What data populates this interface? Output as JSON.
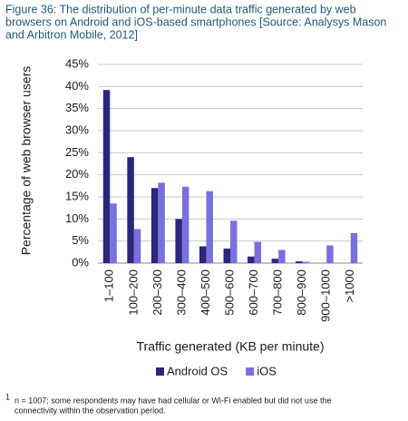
{
  "chart_data": {
    "type": "bar",
    "title": [
      "Figure 36: The distribution of per-minute data traffic generated by web",
      "browsers on Android and iOS-based smartphones [Source: Analysys Mason",
      "and Arbitron Mobile, 2012]"
    ],
    "y_label": "Percentage of web browser users",
    "x_label": "Traffic generated (KB per minute)",
    "categories": [
      "1–100",
      "100–200",
      "200–300",
      "300–400",
      "400–500",
      "500–600",
      "600–700",
      "700–800",
      "800–900",
      "900–1000",
      ">1000"
    ],
    "series": [
      {
        "name": "Android OS",
        "color": "#28287a",
        "values": [
          39.2,
          24,
          17,
          10,
          3.8,
          3.3,
          1.5,
          1,
          0.4,
          0,
          0
        ]
      },
      {
        "name": "iOS",
        "color": "#7b6fe0",
        "values": [
          13.5,
          7.7,
          18.2,
          17.3,
          16.3,
          9.6,
          4.8,
          3,
          0.3,
          4,
          6.8
        ]
      }
    ],
    "ylim": [
      0,
      45
    ],
    "yticks": [
      {
        "value": 0,
        "label": "0%"
      },
      {
        "value": 5,
        "label": "5%"
      },
      {
        "value": 10,
        "label": "10%"
      },
      {
        "value": 15,
        "label": "15%"
      },
      {
        "value": 20,
        "label": "20%"
      },
      {
        "value": 25,
        "label": "25%"
      },
      {
        "value": 30,
        "label": "30%"
      },
      {
        "value": 35,
        "label": "35%"
      },
      {
        "value": 40,
        "label": "40%"
      },
      {
        "value": 45,
        "label": "45%"
      }
    ],
    "grid": true,
    "legend": "bottom",
    "footnote_marker": "1",
    "footnote": [
      "n = 1007; some respondents may have had cellular or Wi-Fi enabled but did not use the",
      "connectivity within the observation period."
    ]
  }
}
